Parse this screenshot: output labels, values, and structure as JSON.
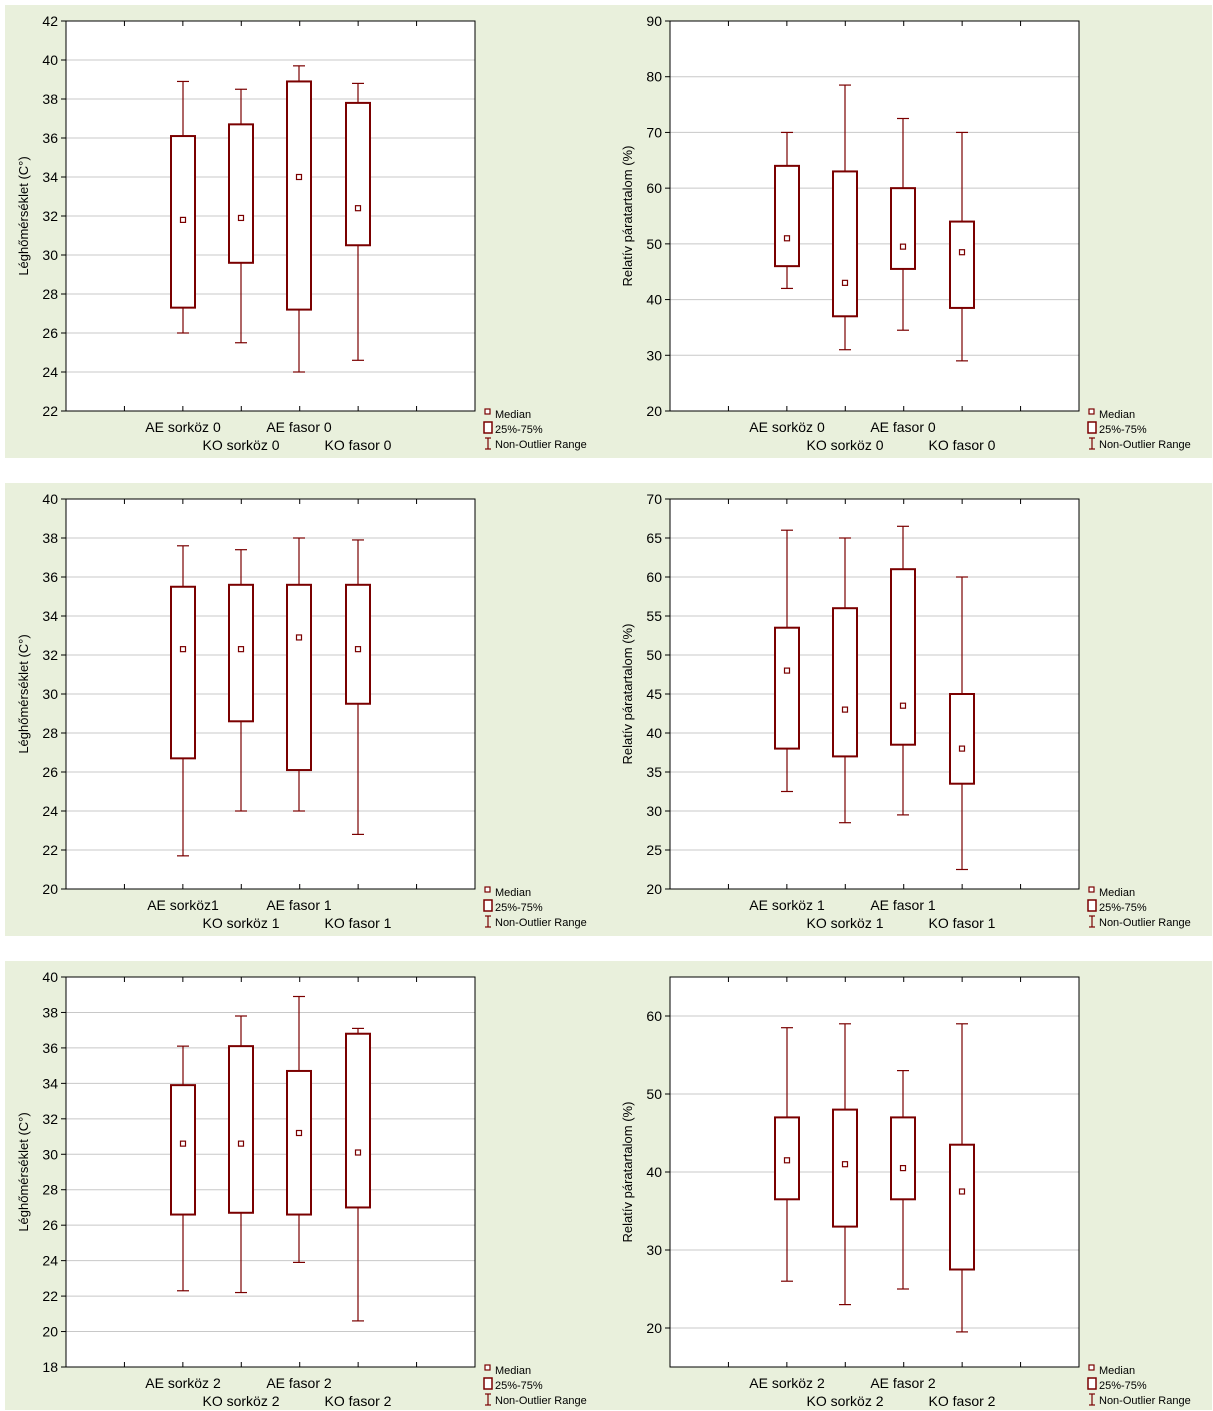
{
  "colors": {
    "box": "#7a0000",
    "background": "#e9f0dc",
    "plot": "#ffffff",
    "grid": "#c8c8c8"
  },
  "legend": {
    "median": "Median",
    "iqr": "25%-75%",
    "range": "Non-Outlier Range"
  },
  "chart_data": [
    {
      "type": "box",
      "ylabel": "Léghőmérséklet (C°)",
      "ylim": [
        22,
        42
      ],
      "yticks": [
        22,
        24,
        26,
        28,
        30,
        32,
        34,
        36,
        38,
        40,
        42
      ],
      "categories": [
        "AE sorköz 0",
        "KO sorköz 0",
        "AE fasor  0",
        "KO fasor 0"
      ],
      "boxes": [
        {
          "min": 26.0,
          "q1": 27.3,
          "median": 31.8,
          "q3": 36.1,
          "max": 38.9
        },
        {
          "min": 25.5,
          "q1": 29.6,
          "median": 31.9,
          "q3": 36.7,
          "max": 38.5
        },
        {
          "min": 24.0,
          "q1": 27.2,
          "median": 34.0,
          "q3": 38.9,
          "max": 39.7
        },
        {
          "min": 24.6,
          "q1": 30.5,
          "median": 32.4,
          "q3": 37.8,
          "max": 38.8
        }
      ]
    },
    {
      "type": "box",
      "ylabel": "Relatív páratartalom (%)",
      "ylim": [
        20,
        90
      ],
      "yticks": [
        20,
        30,
        40,
        50,
        60,
        70,
        80,
        90
      ],
      "categories": [
        "AE sorköz 0",
        "KO sorköz 0",
        "AE fasor 0",
        "KO fasor 0"
      ],
      "boxes": [
        {
          "min": 42.0,
          "q1": 46.0,
          "median": 51.0,
          "q3": 64.0,
          "max": 70.0
        },
        {
          "min": 31.0,
          "q1": 37.0,
          "median": 43.0,
          "q3": 63.0,
          "max": 78.5
        },
        {
          "min": 34.5,
          "q1": 45.5,
          "median": 49.5,
          "q3": 60.0,
          "max": 72.5
        },
        {
          "min": 29.0,
          "q1": 38.5,
          "median": 48.5,
          "q3": 54.0,
          "max": 70.0
        }
      ]
    },
    {
      "type": "box",
      "ylabel": "Léghőmérséklet (C°)",
      "ylim": [
        20,
        40
      ],
      "yticks": [
        20,
        22,
        24,
        26,
        28,
        30,
        32,
        34,
        36,
        38,
        40
      ],
      "categories": [
        "AE sorköz1",
        "KO sorköz 1",
        "AE fasor 1",
        "KO fasor 1"
      ],
      "boxes": [
        {
          "min": 21.7,
          "q1": 26.7,
          "median": 32.3,
          "q3": 35.5,
          "max": 37.6
        },
        {
          "min": 24.0,
          "q1": 28.6,
          "median": 32.3,
          "q3": 35.6,
          "max": 37.4
        },
        {
          "min": 24.0,
          "q1": 26.1,
          "median": 32.9,
          "q3": 35.6,
          "max": 38.0
        },
        {
          "min": 22.8,
          "q1": 29.5,
          "median": 32.3,
          "q3": 35.6,
          "max": 37.9
        }
      ]
    },
    {
      "type": "box",
      "ylabel": "Relatív páratartalom (%)",
      "ylim": [
        20,
        70
      ],
      "yticks": [
        20,
        25,
        30,
        35,
        40,
        45,
        50,
        55,
        60,
        65,
        70
      ],
      "categories": [
        "AE sorköz 1",
        "KO sorköz 1",
        "AE fasor 1",
        "KO fasor 1"
      ],
      "boxes": [
        {
          "min": 32.5,
          "q1": 38.0,
          "median": 48.0,
          "q3": 53.5,
          "max": 66.0
        },
        {
          "min": 28.5,
          "q1": 37.0,
          "median": 43.0,
          "q3": 56.0,
          "max": 65.0
        },
        {
          "min": 29.5,
          "q1": 38.5,
          "median": 43.5,
          "q3": 61.0,
          "max": 66.5
        },
        {
          "min": 22.5,
          "q1": 33.5,
          "median": 38.0,
          "q3": 45.0,
          "max": 60.0
        }
      ]
    },
    {
      "type": "box",
      "ylabel": "Léghőmérséklet (C°)",
      "ylim": [
        18,
        40
      ],
      "yticks": [
        18,
        20,
        22,
        24,
        26,
        28,
        30,
        32,
        34,
        36,
        38,
        40
      ],
      "categories": [
        "AE sorköz 2",
        "KO sorköz 2",
        "AE fasor 2",
        "KO fasor 2"
      ],
      "boxes": [
        {
          "min": 22.3,
          "q1": 26.6,
          "median": 30.6,
          "q3": 33.9,
          "max": 36.1
        },
        {
          "min": 22.2,
          "q1": 26.7,
          "median": 30.6,
          "q3": 36.1,
          "max": 37.8
        },
        {
          "min": 23.9,
          "q1": 26.6,
          "median": 31.2,
          "q3": 34.7,
          "max": 38.9
        },
        {
          "min": 20.6,
          "q1": 27.0,
          "median": 30.1,
          "q3": 36.8,
          "max": 37.1
        }
      ]
    },
    {
      "type": "box",
      "ylabel": "Relatív páratartalom (%)",
      "ylim": [
        15,
        65
      ],
      "yticks": [
        20,
        30,
        40,
        50,
        60
      ],
      "categories": [
        "AE sorköz 2",
        "KO sorköz 2",
        "AE fasor 2",
        "KO fasor 2"
      ],
      "boxes": [
        {
          "min": 26.0,
          "q1": 36.5,
          "median": 41.5,
          "q3": 47.0,
          "max": 58.5
        },
        {
          "min": 23.0,
          "q1": 33.0,
          "median": 41.0,
          "q3": 48.0,
          "max": 59.0
        },
        {
          "min": 25.0,
          "q1": 36.5,
          "median": 40.5,
          "q3": 47.0,
          "max": 53.0
        },
        {
          "min": 19.5,
          "q1": 27.5,
          "median": 37.5,
          "q3": 43.5,
          "max": 59.0
        }
      ]
    }
  ]
}
